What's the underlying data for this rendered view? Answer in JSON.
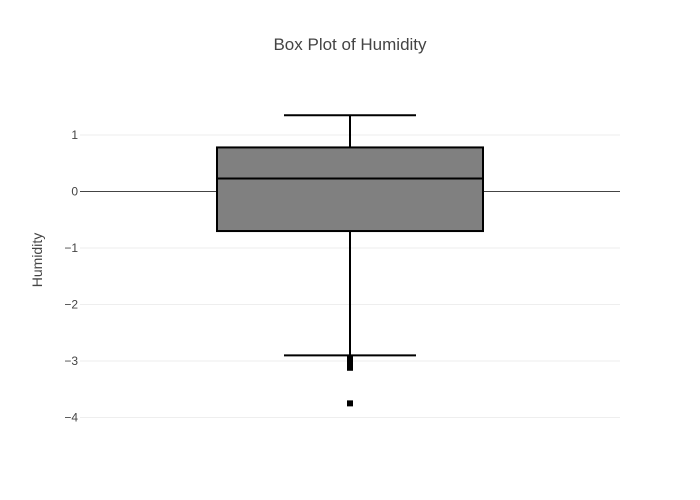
{
  "chart_data": {
    "type": "box",
    "title": "Box Plot of Humidity",
    "xlabel": "",
    "ylabel": "Humidity",
    "ylim": [
      -4.2,
      1.5
    ],
    "yticks": [
      1,
      0,
      -1,
      -2,
      -3,
      -4
    ],
    "ytick_labels": [
      "1",
      "0",
      "−1",
      "−2",
      "−3",
      "−4"
    ],
    "grid": true,
    "box": {
      "lower_fence": -2.9,
      "q1": -0.7,
      "median": 0.23,
      "q3": 0.78,
      "upper_fence": 1.35,
      "outliers": [
        -2.95,
        -2.98,
        -3.0,
        -3.03,
        -3.05,
        -3.08,
        -3.1,
        -3.12,
        -3.75
      ]
    },
    "colors": {
      "box_fill": "#808080",
      "box_line": "#000000",
      "grid": "#eeeeee",
      "zeroline": "#444444"
    }
  }
}
